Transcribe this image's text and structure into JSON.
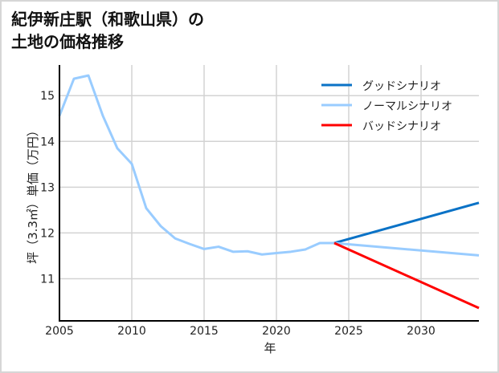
{
  "title": {
    "line1": "紀伊新庄駅（和歌山県）の",
    "line2": "土地の価格推移"
  },
  "colors": {
    "good": "#0a72c6",
    "normal": "#99ccff",
    "bad": "#ff0000",
    "grid": "#d3d3d3",
    "axis": "#000000",
    "frame_border": "#d6d6d6"
  },
  "chart_data": {
    "type": "line",
    "title": "紀伊新庄駅（和歌山県）の土地の価格推移",
    "xlabel": "年",
    "ylabel": "坪（3.3㎡）単価（万円）",
    "xlim": [
      2005,
      2034
    ],
    "ylim": [
      10.08,
      15.67
    ],
    "xticks": [
      2005,
      2010,
      2015,
      2020,
      2025,
      2030
    ],
    "yticks": [
      11,
      12,
      13,
      14,
      15
    ],
    "grid": true,
    "legend_position": "upper right",
    "legend": [
      "グッドシナリオ",
      "ノーマルシナリオ",
      "バッドシナリオ"
    ],
    "series": [
      {
        "name": "ノーマルシナリオ (実績)",
        "color": "#99ccff",
        "x": [
          2005,
          2006,
          2007,
          2008,
          2009,
          2010,
          2011,
          2012,
          2013,
          2014,
          2015,
          2016,
          2017,
          2018,
          2019,
          2020,
          2021,
          2022,
          2023,
          2024
        ],
        "values": [
          14.56,
          15.37,
          15.44,
          14.56,
          13.85,
          13.51,
          12.54,
          12.15,
          11.88,
          11.76,
          11.65,
          11.7,
          11.59,
          11.6,
          11.53,
          11.56,
          11.59,
          11.64,
          11.78,
          11.78
        ]
      },
      {
        "name": "グッドシナリオ",
        "color": "#0a72c6",
        "x": [
          2024,
          2034
        ],
        "values": [
          11.78,
          12.66
        ]
      },
      {
        "name": "ノーマルシナリオ",
        "color": "#99ccff",
        "x": [
          2024,
          2034
        ],
        "values": [
          11.78,
          11.51
        ]
      },
      {
        "name": "バッドシナリオ",
        "color": "#ff0000",
        "x": [
          2024,
          2034
        ],
        "values": [
          11.78,
          10.36
        ]
      }
    ]
  }
}
